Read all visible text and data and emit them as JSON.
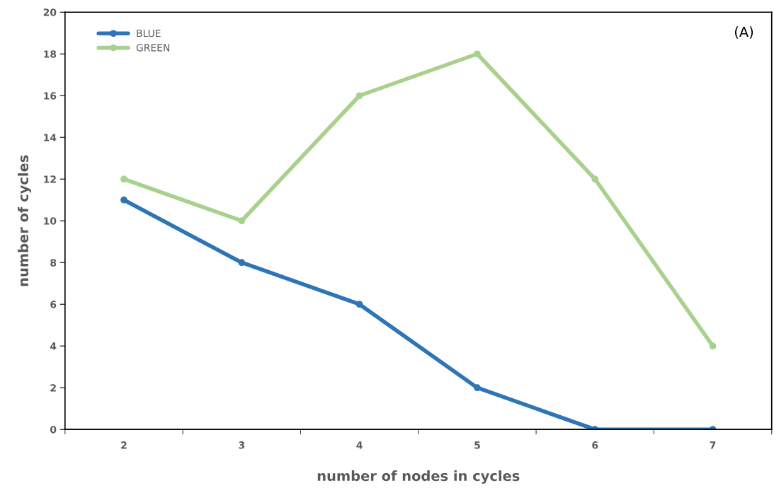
{
  "chart_data": {
    "type": "line",
    "xlabel": "number of nodes in cycles",
    "ylabel": "number of cycles",
    "categories": [
      "2",
      "3",
      "4",
      "5",
      "6",
      "7"
    ],
    "series": [
      {
        "name": "BLUE",
        "color": "#2e75b6",
        "values": [
          11,
          8,
          6,
          2,
          0,
          0
        ]
      },
      {
        "name": "GREEN",
        "color": "#a9d18e",
        "values": [
          12,
          10,
          16,
          18,
          12,
          4
        ]
      }
    ],
    "ylim": [
      0,
      20
    ],
    "yticks": [
      0,
      2,
      4,
      6,
      8,
      10,
      12,
      14,
      16,
      18,
      20
    ],
    "annotations": [
      "(A)"
    ],
    "grid": false,
    "legend": "top left",
    "marker": "circle",
    "line_style": "solid"
  }
}
